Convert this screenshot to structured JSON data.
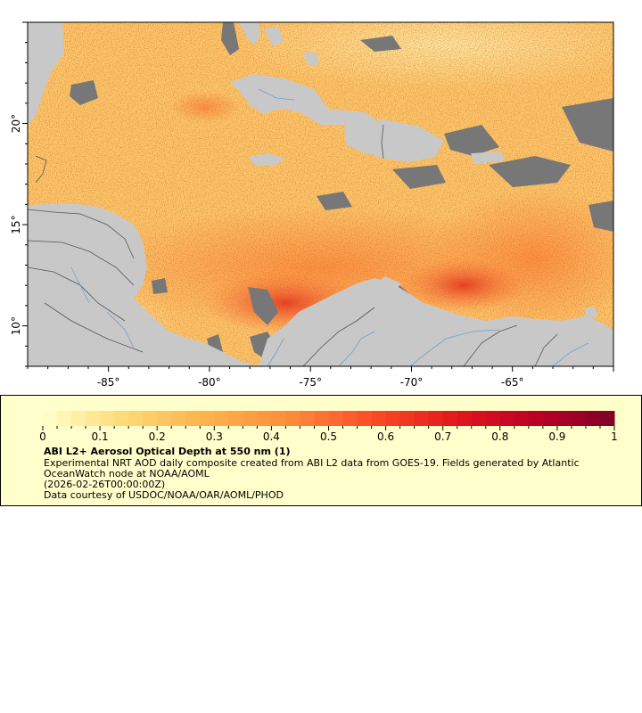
{
  "map": {
    "x_ticks": [
      {
        "lon": -85,
        "label": "-85°"
      },
      {
        "lon": -80,
        "label": "-80°"
      },
      {
        "lon": -75,
        "label": "-75°"
      },
      {
        "lon": -70,
        "label": "-70°"
      },
      {
        "lon": -65,
        "label": "-65°"
      }
    ],
    "y_ticks": [
      {
        "lat": 10,
        "label": "10°"
      },
      {
        "lat": 15,
        "label": "15°"
      },
      {
        "lat": 20,
        "label": "20°"
      }
    ],
    "lon_range": [
      -89.0,
      -60.0
    ],
    "lat_range": [
      8.0,
      25.0
    ],
    "land_color": "#c8c8c8",
    "nodata_color": "#777777",
    "water_line_color": "#6f9fd0",
    "border_color": "#555555"
  },
  "colorbar": {
    "min": 0,
    "max": 1,
    "ticks": [
      "0",
      "0.1",
      "0.2",
      "0.3",
      "0.4",
      "0.5",
      "0.6",
      "0.7",
      "0.8",
      "0.9",
      "1"
    ],
    "colors": [
      "#ffffcc",
      "#fed976",
      "#feb24c",
      "#fd8d3c",
      "#fc4e2a",
      "#e31a1c",
      "#bd0026",
      "#800026"
    ]
  },
  "legend": {
    "title": "ABI L2+ Aerosol Optical Depth at 550 nm (1)",
    "description": "Experimental NRT AOD daily composite created from ABI L2 data from GOES-19. Fields generated by Atlantic OceanWatch node at NOAA/AOML",
    "time": "(2026-02-26T00:00:00Z)",
    "credit": "Data courtesy of USDOC/NOAA/OAR/AOML/PHOD"
  }
}
